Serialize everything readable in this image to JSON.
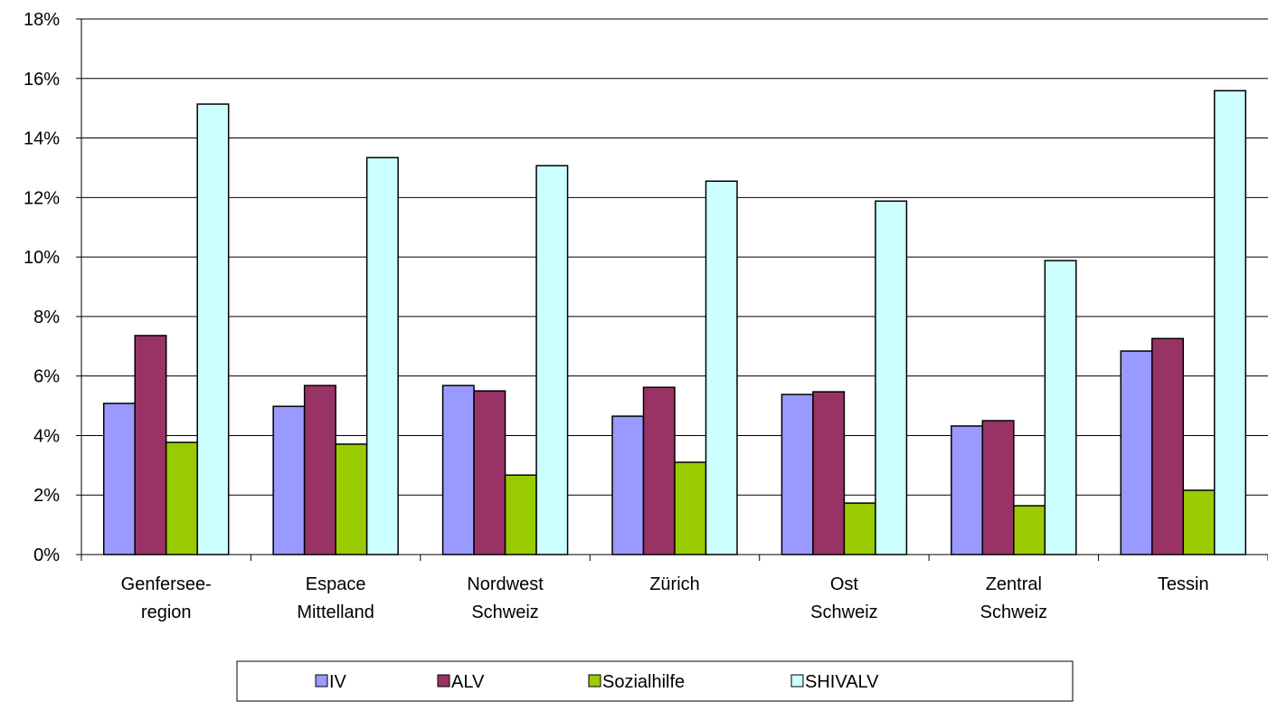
{
  "chart_data": {
    "type": "bar",
    "categories": [
      "Genfersee-\nregion",
      "Espace\nMittelland",
      "Nordwest\nSchweiz",
      "Zürich",
      "Ost\nSchweiz",
      "Zentral\nSchweiz",
      "Tessin"
    ],
    "series": [
      {
        "name": "IV",
        "color": "#9999ff",
        "values": [
          5.08,
          4.98,
          5.68,
          4.65,
          5.38,
          4.32,
          6.84
        ]
      },
      {
        "name": "ALV",
        "color": "#993366",
        "values": [
          7.36,
          5.68,
          5.5,
          5.62,
          5.47,
          4.5,
          7.26
        ]
      },
      {
        "name": "Sozialhilfe",
        "color": "#99cc00",
        "values": [
          3.77,
          3.71,
          2.67,
          3.1,
          1.73,
          1.64,
          2.16
        ]
      },
      {
        "name": "SHIVALV",
        "color": "#ccffff",
        "values": [
          15.14,
          13.34,
          13.07,
          12.55,
          11.88,
          9.88,
          15.59
        ]
      }
    ],
    "ylim": [
      0,
      18
    ],
    "yticks": [
      {
        "value": 0,
        "label": "0%"
      },
      {
        "value": 2,
        "label": "2%"
      },
      {
        "value": 4,
        "label": "4%"
      },
      {
        "value": 6,
        "label": "6%"
      },
      {
        "value": 8,
        "label": "8%"
      },
      {
        "value": 10,
        "label": "10%"
      },
      {
        "value": 12,
        "label": "12%"
      },
      {
        "value": 14,
        "label": "14%"
      },
      {
        "value": 16,
        "label": "16%"
      },
      {
        "value": 18,
        "label": "18%"
      }
    ],
    "grid": true,
    "legend": "bottom"
  }
}
